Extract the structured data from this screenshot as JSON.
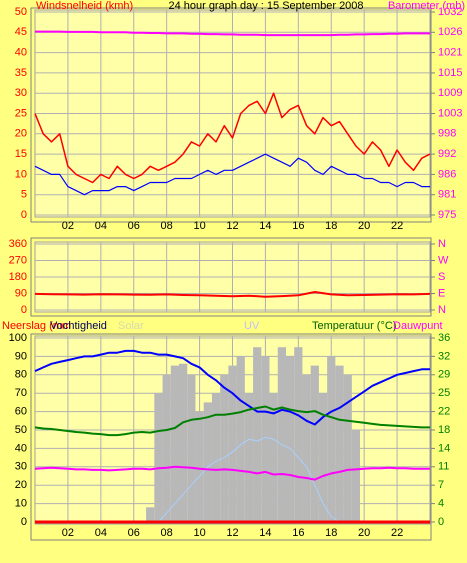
{
  "chart_data": [
    {
      "type": "line",
      "title": "24 hour graph day : 15 September 2008",
      "ylabel": "Windsnelheid (kmh)",
      "y2label": "Barometer (mb)",
      "ytick_color": "#ff0000",
      "y2tick_color": "#ff00ff",
      "xlim": [
        0,
        24
      ],
      "xticks": [
        {
          "value": 2,
          "label": "02"
        },
        {
          "value": 4,
          "label": "04"
        },
        {
          "value": 6,
          "label": "06"
        },
        {
          "value": 8,
          "label": "08"
        },
        {
          "value": 10,
          "label": "10"
        },
        {
          "value": 12,
          "label": "12"
        },
        {
          "value": 14,
          "label": "14"
        },
        {
          "value": 16,
          "label": "16"
        },
        {
          "value": 18,
          "label": "18"
        },
        {
          "value": 20,
          "label": "20"
        },
        {
          "value": 22,
          "label": "22"
        }
      ],
      "ylim": [
        0,
        50
      ],
      "yticks": [
        0,
        5,
        10,
        15,
        20,
        25,
        30,
        35,
        40,
        45,
        50
      ],
      "y2lim": [
        975,
        1032
      ],
      "y2ticks": [
        975,
        {
          "value": 980.7,
          "label": "981"
        },
        {
          "value": 986.4,
          "label": "986"
        },
        {
          "value": 992.1,
          "label": "992"
        },
        {
          "value": 997.8,
          "label": "998"
        },
        {
          "value": 1003.5,
          "label": "1003"
        },
        {
          "value": 1009.2,
          "label": "1009"
        },
        {
          "value": 1014.9,
          "label": "1015"
        },
        {
          "value": 1020.6,
          "label": "1021"
        },
        {
          "value": 1026.3,
          "label": "1026"
        },
        1032
      ],
      "x": [
        0,
        0.5,
        1,
        1.5,
        2,
        2.5,
        3,
        3.5,
        4,
        4.5,
        5,
        5.5,
        6,
        6.5,
        7,
        7.5,
        8,
        8.5,
        9,
        9.5,
        10,
        10.5,
        11,
        11.5,
        12,
        12.5,
        13,
        13.5,
        14,
        14.5,
        15,
        15.5,
        16,
        16.5,
        17,
        17.5,
        18,
        18.5,
        19,
        19.5,
        20,
        20.5,
        21,
        21.5,
        22,
        22.5,
        23,
        23.5,
        24
      ],
      "series": [
        {
          "color": "#ff0000",
          "width": 1.5,
          "values": [
            25,
            20,
            18,
            20,
            12,
            10,
            9,
            8,
            10,
            9,
            12,
            10,
            9,
            10,
            12,
            11,
            12,
            13,
            15,
            18,
            17,
            20,
            18,
            22,
            19,
            25,
            27,
            28,
            25,
            30,
            24,
            26,
            27,
            22,
            20,
            24,
            22,
            23,
            20,
            17,
            15,
            18,
            16,
            12,
            16,
            13,
            11,
            14,
            15
          ]
        },
        {
          "color": "#0000ff",
          "width": 1.2,
          "values": [
            12,
            11,
            10,
            10,
            7,
            6,
            5,
            6,
            6,
            6,
            7,
            7,
            6,
            7,
            8,
            8,
            8,
            9,
            9,
            9,
            10,
            11,
            10,
            11,
            11,
            12,
            13,
            14,
            15,
            14,
            13,
            12,
            14,
            13,
            11,
            10,
            12,
            11,
            10,
            10,
            9,
            9,
            8,
            8,
            7,
            8,
            8,
            7,
            7
          ]
        },
        {
          "color": "#ff00ff",
          "width": 2,
          "axis": "y2",
          "values": [
            1026.5,
            1026.5,
            1026.5,
            1026.5,
            1026.4,
            1026.4,
            1026.4,
            1026.4,
            1026.3,
            1026.3,
            1026.3,
            1026.3,
            1026.2,
            1026.2,
            1026.1,
            1026.1,
            1026,
            1026,
            1026,
            1025.9,
            1025.9,
            1025.8,
            1025.8,
            1025.7,
            1025.7,
            1025.6,
            1025.6,
            1025.6,
            1025.5,
            1025.5,
            1025.5,
            1025.5,
            1025.5,
            1025.5,
            1025.5,
            1025.5,
            1025.5,
            1025.6,
            1025.6,
            1025.7,
            1025.7,
            1025.8,
            1025.8,
            1025.9,
            1025.9,
            1026,
            1026,
            1026,
            1026
          ]
        }
      ]
    },
    {
      "type": "line",
      "ytick_color": "#ff0000",
      "y2tick_color": "#ff00ff",
      "xlim": [
        0,
        24
      ],
      "xgrid": [
        2,
        4,
        6,
        8,
        10,
        12,
        14,
        16,
        18,
        20,
        22
      ],
      "ylim": [
        0,
        360
      ],
      "yticks": [
        0,
        90,
        180,
        270,
        360
      ],
      "y2lim": [
        0,
        360
      ],
      "y2ticks": [
        {
          "value": 0,
          "label": "N"
        },
        {
          "value": 90,
          "label": "E"
        },
        {
          "value": 180,
          "label": "S"
        },
        {
          "value": 270,
          "label": "W"
        },
        {
          "value": 360,
          "label": "N"
        }
      ],
      "x": [
        0,
        1,
        2,
        3,
        4,
        5,
        6,
        7,
        8,
        9,
        10,
        11,
        12,
        13,
        14,
        15,
        16,
        17,
        18,
        19,
        20,
        21,
        22,
        23,
        24
      ],
      "series": [
        {
          "color": "#ff0000",
          "width": 2,
          "values": [
            88,
            86,
            85,
            84,
            86,
            85,
            84,
            83,
            85,
            82,
            80,
            78,
            75,
            78,
            72,
            76,
            80,
            98,
            85,
            80,
            82,
            84,
            86,
            85,
            88
          ]
        }
      ]
    },
    {
      "type": "line",
      "ytick_color": "#000000",
      "y2tick_color": "#008000",
      "xlim": [
        0,
        24
      ],
      "xticks": [
        {
          "value": 2,
          "label": "02"
        },
        {
          "value": 4,
          "label": "04"
        },
        {
          "value": 6,
          "label": "06"
        },
        {
          "value": 8,
          "label": "08"
        },
        {
          "value": 10,
          "label": "10"
        },
        {
          "value": 12,
          "label": "12"
        },
        {
          "value": 14,
          "label": "14"
        },
        {
          "value": 16,
          "label": "16"
        },
        {
          "value": 18,
          "label": "18"
        },
        {
          "value": 20,
          "label": "20"
        },
        {
          "value": 22,
          "label": "22"
        }
      ],
      "ylim": [
        0,
        100
      ],
      "yticks": [
        0,
        10,
        20,
        30,
        40,
        50,
        60,
        70,
        80,
        90,
        100
      ],
      "y2lim": [
        0,
        36
      ],
      "y2ticks": [
        0,
        {
          "value": 3.6,
          "label": "4"
        },
        {
          "value": 7.2,
          "label": "7"
        },
        {
          "value": 10.8,
          "label": "11"
        },
        {
          "value": 14.4,
          "label": "14"
        },
        {
          "value": 18,
          "label": "18"
        },
        {
          "value": 21.6,
          "label": "22"
        },
        {
          "value": 25.2,
          "label": "25"
        },
        {
          "value": 28.8,
          "label": "29"
        },
        {
          "value": 32.4,
          "label": "32"
        },
        36
      ],
      "solarlim": [
        0,
        1000
      ],
      "uvlim": [
        0,
        10
      ],
      "x": [
        0,
        0.5,
        1,
        1.5,
        2,
        2.5,
        3,
        3.5,
        4,
        4.5,
        5,
        5.5,
        6,
        6.5,
        7,
        7.5,
        8,
        8.5,
        9,
        9.5,
        10,
        10.5,
        11,
        11.5,
        12,
        12.5,
        13,
        13.5,
        14,
        14.5,
        15,
        15.5,
        16,
        16.5,
        17,
        17.5,
        18,
        18.5,
        19,
        19.5,
        20,
        20.5,
        21,
        21.5,
        22,
        22.5,
        23,
        23.5,
        24
      ],
      "series": [
        {
          "name": "Solar",
          "color": "#b8b8b8",
          "label_color": "#d8d8b0",
          "style": "bars",
          "axis": "solar",
          "values": [
            0,
            0,
            0,
            0,
            0,
            0,
            0,
            0,
            0,
            0,
            0,
            0,
            0,
            0,
            80,
            700,
            800,
            850,
            860,
            800,
            600,
            650,
            700,
            800,
            850,
            900,
            700,
            950,
            900,
            700,
            950,
            900,
            950,
            800,
            850,
            700,
            900,
            850,
            800,
            500,
            0,
            0,
            0,
            0,
            0,
            0,
            0,
            0,
            0
          ]
        },
        {
          "name": "UV",
          "color": "#a8d0ff",
          "label_color": "#c0c0ff",
          "width": 1,
          "axis": "uv",
          "values": [
            0,
            0,
            0,
            0,
            0,
            0,
            0,
            0,
            0,
            0,
            0,
            0,
            0,
            0,
            0,
            0,
            0.5,
            1,
            1.5,
            2,
            2.5,
            3,
            3.3,
            3.5,
            3.8,
            4.2,
            4.5,
            4.4,
            4.6,
            4.5,
            4.2,
            4,
            3.5,
            3,
            2,
            1,
            0.3,
            0,
            0,
            0,
            0,
            0,
            0,
            0,
            0,
            0,
            0,
            0,
            0
          ]
        },
        {
          "name": "Neerslag (mm",
          "color": "#ff0000",
          "width": 3,
          "values": [
            0,
            0,
            0,
            0,
            0,
            0,
            0,
            0,
            0,
            0,
            0,
            0,
            0,
            0,
            0,
            0,
            0,
            0,
            0,
            0,
            0,
            0,
            0,
            0,
            0,
            0,
            0,
            0,
            0,
            0,
            0,
            0,
            0,
            0,
            0,
            0,
            0,
            0,
            0,
            0,
            0,
            0,
            0,
            0,
            0,
            0,
            0,
            0,
            0
          ]
        },
        {
          "name": "Vochtigheid",
          "color": "#0000ff",
          "label_color": "#000060",
          "width": 2,
          "values": [
            82,
            84,
            86,
            87,
            88,
            89,
            90,
            90,
            91,
            92,
            92,
            93,
            93,
            92,
            92,
            91,
            91,
            90,
            89,
            86,
            84,
            80,
            77,
            73,
            70,
            66,
            63,
            60,
            60,
            59,
            61,
            60,
            58,
            55,
            53,
            57,
            60,
            62,
            65,
            68,
            71,
            74,
            76,
            78,
            80,
            81,
            82,
            83,
            83
          ]
        },
        {
          "name": "Temperatuur (°C)",
          "color": "#008000",
          "label_color": "#006000",
          "width": 2,
          "axis": "y2",
          "values": [
            18.5,
            18.3,
            18.2,
            18,
            17.8,
            17.6,
            17.5,
            17.3,
            17.2,
            17,
            17,
            17.2,
            17.5,
            17.6,
            17.5,
            17.8,
            18,
            18.4,
            19.5,
            20,
            20.2,
            20.5,
            21,
            21,
            21.2,
            21.5,
            22,
            22.3,
            22.6,
            22,
            22.4,
            22,
            21.7,
            21.5,
            21.7,
            21,
            20.5,
            20,
            19.8,
            19.6,
            19.4,
            19.2,
            19,
            18.9,
            18.8,
            18.7,
            18.6,
            18.5,
            18.5
          ]
        },
        {
          "name": "Dauwpunt",
          "color": "#ff00ff",
          "width": 2,
          "axis": "y2",
          "values": [
            10.4,
            10.5,
            10.6,
            10.5,
            10.4,
            10.3,
            10.3,
            10.2,
            10.2,
            10.1,
            10.2,
            10.3,
            10.4,
            10.4,
            10.3,
            10.5,
            10.6,
            10.8,
            10.7,
            10.6,
            10.4,
            10.3,
            10.2,
            10.3,
            10.2,
            10,
            9.8,
            9.5,
            9.8,
            9.3,
            9.4,
            9.2,
            8.8,
            8.6,
            8.3,
            9,
            9.5,
            9.8,
            10.2,
            10.3,
            10.4,
            10.5,
            10.5,
            10.6,
            10.5,
            10.5,
            10.4,
            10.4,
            10.4
          ]
        }
      ]
    }
  ]
}
